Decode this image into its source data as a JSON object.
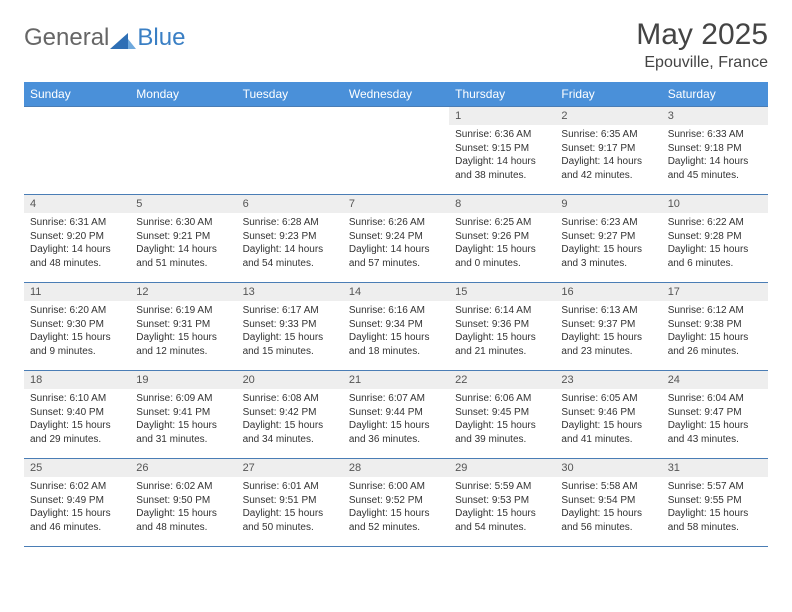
{
  "brand": {
    "general": "General",
    "blue": "Blue"
  },
  "title": {
    "month": "May 2025",
    "location": "Epouville, France"
  },
  "colors": {
    "header_bg": "#4a90d9",
    "header_text": "#ffffff",
    "grid_line": "#4a7db5",
    "daynum_bg": "#eeeeee",
    "text_muted": "#555555",
    "text_body": "#333333",
    "brand_gray": "#666666",
    "brand_blue": "#3a7fc4"
  },
  "dow": [
    "Sunday",
    "Monday",
    "Tuesday",
    "Wednesday",
    "Thursday",
    "Friday",
    "Saturday"
  ],
  "weeks": [
    [
      {
        "n": "",
        "sr": "",
        "ss": "",
        "dl": ""
      },
      {
        "n": "",
        "sr": "",
        "ss": "",
        "dl": ""
      },
      {
        "n": "",
        "sr": "",
        "ss": "",
        "dl": ""
      },
      {
        "n": "",
        "sr": "",
        "ss": "",
        "dl": ""
      },
      {
        "n": "1",
        "sr": "Sunrise: 6:36 AM",
        "ss": "Sunset: 9:15 PM",
        "dl": "Daylight: 14 hours and 38 minutes."
      },
      {
        "n": "2",
        "sr": "Sunrise: 6:35 AM",
        "ss": "Sunset: 9:17 PM",
        "dl": "Daylight: 14 hours and 42 minutes."
      },
      {
        "n": "3",
        "sr": "Sunrise: 6:33 AM",
        "ss": "Sunset: 9:18 PM",
        "dl": "Daylight: 14 hours and 45 minutes."
      }
    ],
    [
      {
        "n": "4",
        "sr": "Sunrise: 6:31 AM",
        "ss": "Sunset: 9:20 PM",
        "dl": "Daylight: 14 hours and 48 minutes."
      },
      {
        "n": "5",
        "sr": "Sunrise: 6:30 AM",
        "ss": "Sunset: 9:21 PM",
        "dl": "Daylight: 14 hours and 51 minutes."
      },
      {
        "n": "6",
        "sr": "Sunrise: 6:28 AM",
        "ss": "Sunset: 9:23 PM",
        "dl": "Daylight: 14 hours and 54 minutes."
      },
      {
        "n": "7",
        "sr": "Sunrise: 6:26 AM",
        "ss": "Sunset: 9:24 PM",
        "dl": "Daylight: 14 hours and 57 minutes."
      },
      {
        "n": "8",
        "sr": "Sunrise: 6:25 AM",
        "ss": "Sunset: 9:26 PM",
        "dl": "Daylight: 15 hours and 0 minutes."
      },
      {
        "n": "9",
        "sr": "Sunrise: 6:23 AM",
        "ss": "Sunset: 9:27 PM",
        "dl": "Daylight: 15 hours and 3 minutes."
      },
      {
        "n": "10",
        "sr": "Sunrise: 6:22 AM",
        "ss": "Sunset: 9:28 PM",
        "dl": "Daylight: 15 hours and 6 minutes."
      }
    ],
    [
      {
        "n": "11",
        "sr": "Sunrise: 6:20 AM",
        "ss": "Sunset: 9:30 PM",
        "dl": "Daylight: 15 hours and 9 minutes."
      },
      {
        "n": "12",
        "sr": "Sunrise: 6:19 AM",
        "ss": "Sunset: 9:31 PM",
        "dl": "Daylight: 15 hours and 12 minutes."
      },
      {
        "n": "13",
        "sr": "Sunrise: 6:17 AM",
        "ss": "Sunset: 9:33 PM",
        "dl": "Daylight: 15 hours and 15 minutes."
      },
      {
        "n": "14",
        "sr": "Sunrise: 6:16 AM",
        "ss": "Sunset: 9:34 PM",
        "dl": "Daylight: 15 hours and 18 minutes."
      },
      {
        "n": "15",
        "sr": "Sunrise: 6:14 AM",
        "ss": "Sunset: 9:36 PM",
        "dl": "Daylight: 15 hours and 21 minutes."
      },
      {
        "n": "16",
        "sr": "Sunrise: 6:13 AM",
        "ss": "Sunset: 9:37 PM",
        "dl": "Daylight: 15 hours and 23 minutes."
      },
      {
        "n": "17",
        "sr": "Sunrise: 6:12 AM",
        "ss": "Sunset: 9:38 PM",
        "dl": "Daylight: 15 hours and 26 minutes."
      }
    ],
    [
      {
        "n": "18",
        "sr": "Sunrise: 6:10 AM",
        "ss": "Sunset: 9:40 PM",
        "dl": "Daylight: 15 hours and 29 minutes."
      },
      {
        "n": "19",
        "sr": "Sunrise: 6:09 AM",
        "ss": "Sunset: 9:41 PM",
        "dl": "Daylight: 15 hours and 31 minutes."
      },
      {
        "n": "20",
        "sr": "Sunrise: 6:08 AM",
        "ss": "Sunset: 9:42 PM",
        "dl": "Daylight: 15 hours and 34 minutes."
      },
      {
        "n": "21",
        "sr": "Sunrise: 6:07 AM",
        "ss": "Sunset: 9:44 PM",
        "dl": "Daylight: 15 hours and 36 minutes."
      },
      {
        "n": "22",
        "sr": "Sunrise: 6:06 AM",
        "ss": "Sunset: 9:45 PM",
        "dl": "Daylight: 15 hours and 39 minutes."
      },
      {
        "n": "23",
        "sr": "Sunrise: 6:05 AM",
        "ss": "Sunset: 9:46 PM",
        "dl": "Daylight: 15 hours and 41 minutes."
      },
      {
        "n": "24",
        "sr": "Sunrise: 6:04 AM",
        "ss": "Sunset: 9:47 PM",
        "dl": "Daylight: 15 hours and 43 minutes."
      }
    ],
    [
      {
        "n": "25",
        "sr": "Sunrise: 6:02 AM",
        "ss": "Sunset: 9:49 PM",
        "dl": "Daylight: 15 hours and 46 minutes."
      },
      {
        "n": "26",
        "sr": "Sunrise: 6:02 AM",
        "ss": "Sunset: 9:50 PM",
        "dl": "Daylight: 15 hours and 48 minutes."
      },
      {
        "n": "27",
        "sr": "Sunrise: 6:01 AM",
        "ss": "Sunset: 9:51 PM",
        "dl": "Daylight: 15 hours and 50 minutes."
      },
      {
        "n": "28",
        "sr": "Sunrise: 6:00 AM",
        "ss": "Sunset: 9:52 PM",
        "dl": "Daylight: 15 hours and 52 minutes."
      },
      {
        "n": "29",
        "sr": "Sunrise: 5:59 AM",
        "ss": "Sunset: 9:53 PM",
        "dl": "Daylight: 15 hours and 54 minutes."
      },
      {
        "n": "30",
        "sr": "Sunrise: 5:58 AM",
        "ss": "Sunset: 9:54 PM",
        "dl": "Daylight: 15 hours and 56 minutes."
      },
      {
        "n": "31",
        "sr": "Sunrise: 5:57 AM",
        "ss": "Sunset: 9:55 PM",
        "dl": "Daylight: 15 hours and 58 minutes."
      }
    ]
  ]
}
